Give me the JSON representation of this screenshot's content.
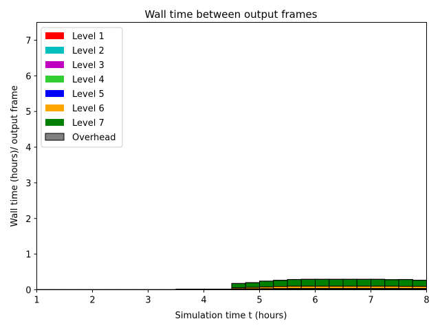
{
  "chart_data": {
    "type": "bar",
    "title": "Wall time between output frames",
    "xlabel": "Simulation time t (hours)",
    "ylabel": "Wall time (hours)/ output frame",
    "xlim": [
      1,
      8
    ],
    "ylim": [
      0,
      7.5
    ],
    "xticks": [
      "1",
      "2",
      "3",
      "4",
      "5",
      "6",
      "7",
      "8"
    ],
    "yticks": [
      "0",
      "1",
      "2",
      "3",
      "4",
      "5",
      "6",
      "7"
    ],
    "grid": false,
    "legend_position": "top-left",
    "bar_width_hours": 0.25,
    "x": [
      1.0,
      1.25,
      1.5,
      1.75,
      2.0,
      2.25,
      2.5,
      2.75,
      3.0,
      3.25,
      3.5,
      3.75,
      4.0,
      4.25,
      4.5,
      4.75,
      5.0,
      5.25,
      5.5,
      5.75,
      6.0,
      6.25,
      6.5,
      6.75,
      7.0,
      7.25,
      7.5,
      7.75
    ],
    "series": [
      {
        "name": "Level 1",
        "color": "#ff0000",
        "values": [
          0.003,
          0.003,
          0.003,
          0.003,
          0.003,
          0.003,
          0.003,
          0.003,
          0.003,
          0.003,
          0.004,
          0.004,
          0.004,
          0.004,
          0.004,
          0.004,
          0.004,
          0.004,
          0.004,
          0.004,
          0.004,
          0.004,
          0.004,
          0.004,
          0.004,
          0.004,
          0.004,
          0.004
        ]
      },
      {
        "name": "Level 2",
        "color": "#00bfbf",
        "values": [
          0.001,
          0.001,
          0.001,
          0.001,
          0.001,
          0.001,
          0.001,
          0.001,
          0.001,
          0.001,
          0.002,
          0.002,
          0.002,
          0.002,
          0.002,
          0.002,
          0.002,
          0.002,
          0.002,
          0.002,
          0.002,
          0.002,
          0.002,
          0.002,
          0.002,
          0.002,
          0.002,
          0.002
        ]
      },
      {
        "name": "Level 3",
        "color": "#bf00bf",
        "values": [
          0,
          0,
          0,
          0,
          0,
          0,
          0,
          0,
          0,
          0,
          0.002,
          0.002,
          0.002,
          0.002,
          0.004,
          0.004,
          0.004,
          0.004,
          0.004,
          0.004,
          0.004,
          0.004,
          0.004,
          0.004,
          0.004,
          0.004,
          0.004,
          0.004
        ]
      },
      {
        "name": "Level 4",
        "color": "#32cd32",
        "values": [
          0,
          0,
          0,
          0,
          0,
          0,
          0,
          0,
          0,
          0,
          0.003,
          0.003,
          0.003,
          0.003,
          0.006,
          0.007,
          0.008,
          0.009,
          0.01,
          0.01,
          0.01,
          0.01,
          0.01,
          0.01,
          0.01,
          0.01,
          0.01,
          0.01
        ]
      },
      {
        "name": "Level 5",
        "color": "#0000ff",
        "values": [
          0,
          0,
          0,
          0,
          0,
          0,
          0,
          0,
          0,
          0,
          0.003,
          0.003,
          0.003,
          0.003,
          0.01,
          0.012,
          0.014,
          0.016,
          0.018,
          0.018,
          0.018,
          0.018,
          0.018,
          0.018,
          0.018,
          0.018,
          0.018,
          0.018
        ]
      },
      {
        "name": "Level 6",
        "color": "#ffa500",
        "values": [
          0,
          0,
          0,
          0,
          0,
          0,
          0,
          0,
          0,
          0,
          0.005,
          0.005,
          0.005,
          0.005,
          0.03,
          0.04,
          0.05,
          0.06,
          0.065,
          0.065,
          0.065,
          0.065,
          0.065,
          0.065,
          0.065,
          0.065,
          0.06,
          0.06
        ]
      },
      {
        "name": "Level 7",
        "color": "#008000",
        "values": [
          0,
          0,
          0,
          0,
          0,
          0,
          0,
          0,
          0,
          0,
          0,
          0,
          0,
          0,
          0.12,
          0.13,
          0.16,
          0.17,
          0.185,
          0.19,
          0.19,
          0.19,
          0.19,
          0.19,
          0.19,
          0.18,
          0.19,
          0.17
        ]
      },
      {
        "name": "Overhead",
        "color": "#808080",
        "values": [
          0.001,
          0.001,
          0.001,
          0.001,
          0.001,
          0.001,
          0.001,
          0.001,
          0.001,
          0.001,
          0.001,
          0.001,
          0.001,
          0.001,
          0.002,
          0.002,
          0.002,
          0.002,
          0.002,
          0.002,
          0.002,
          0.002,
          0.002,
          0.002,
          0.002,
          0.002,
          0.002,
          0.002
        ]
      }
    ]
  }
}
